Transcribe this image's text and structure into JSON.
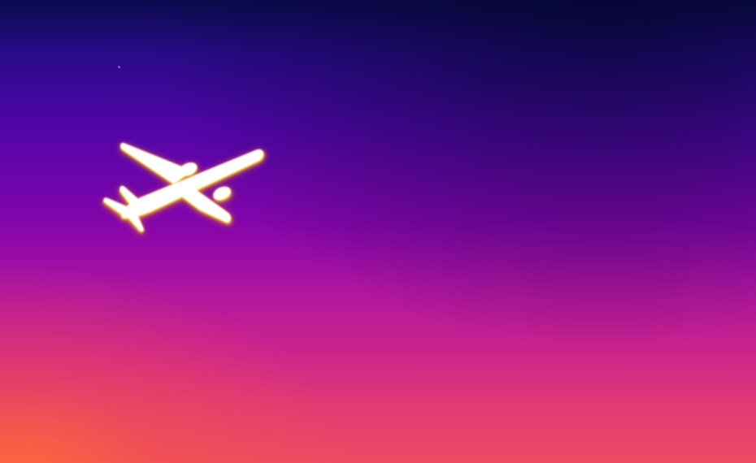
{
  "image": {
    "kind": "thermal-infrared-photo",
    "subject": "airplane-in-flight",
    "palette": {
      "sky_top": "#0a0a4e",
      "sky_upper": "#2a0a8a",
      "sky_mid": "#8305ab",
      "sky_lower": "#cc248d",
      "sky_bottom": "#ec4c62",
      "hot_core": "#ffffff",
      "hot_mid": "#fff38a",
      "hot_edge": "#ffae1a"
    }
  }
}
